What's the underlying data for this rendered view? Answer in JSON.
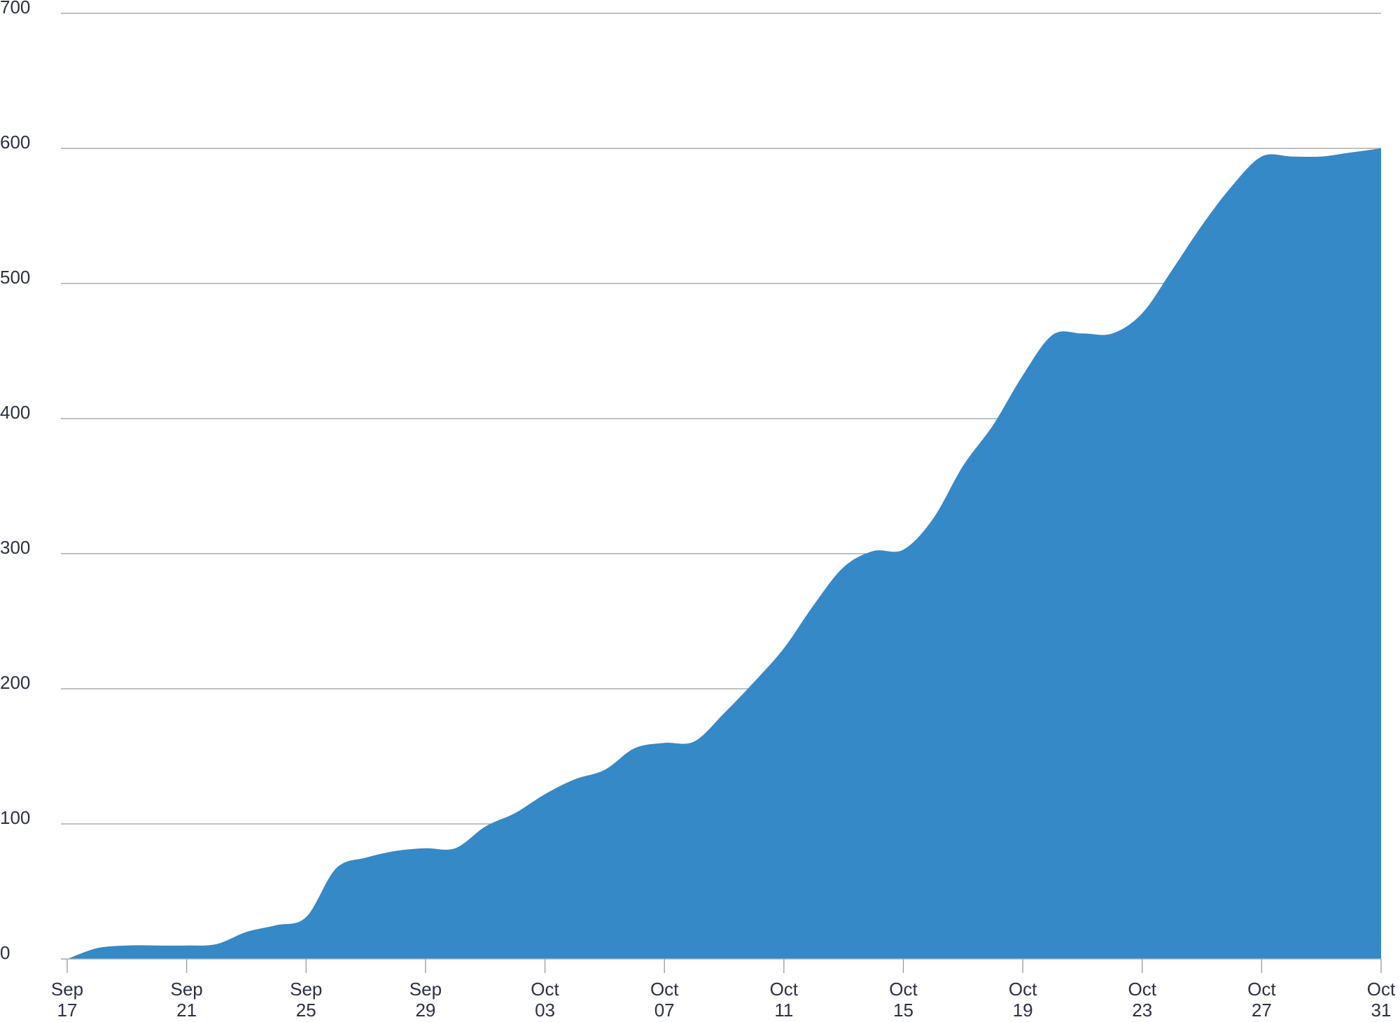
{
  "chart_data": {
    "type": "area",
    "categories": [
      "Sep 17",
      null,
      null,
      null,
      "Sep 21",
      null,
      null,
      null,
      "Sep 25",
      null,
      null,
      null,
      "Sep 29",
      null,
      null,
      null,
      "Oct 03",
      null,
      null,
      null,
      "Oct 07",
      null,
      null,
      null,
      "Oct 11",
      null,
      null,
      null,
      "Oct 15",
      null,
      null,
      null,
      "Oct 19",
      null,
      null,
      null,
      "Oct 23",
      null,
      null,
      null,
      "Oct 27",
      null,
      null,
      null,
      "Oct 31"
    ],
    "values": [
      0,
      8,
      10,
      10,
      10,
      11,
      20,
      25,
      31,
      67,
      75,
      80,
      82,
      82,
      98,
      108,
      122,
      133,
      140,
      156,
      160,
      161,
      182,
      205,
      230,
      262,
      290,
      302,
      303,
      326,
      365,
      395,
      432,
      462,
      463,
      463,
      478,
      510,
      543,
      572,
      594,
      594,
      594,
      597,
      600
    ],
    "color": "#3589c7",
    "ylim": [
      0,
      700
    ],
    "yticks": [
      0,
      100,
      200,
      300,
      400,
      500,
      600,
      700
    ],
    "grid": true
  }
}
